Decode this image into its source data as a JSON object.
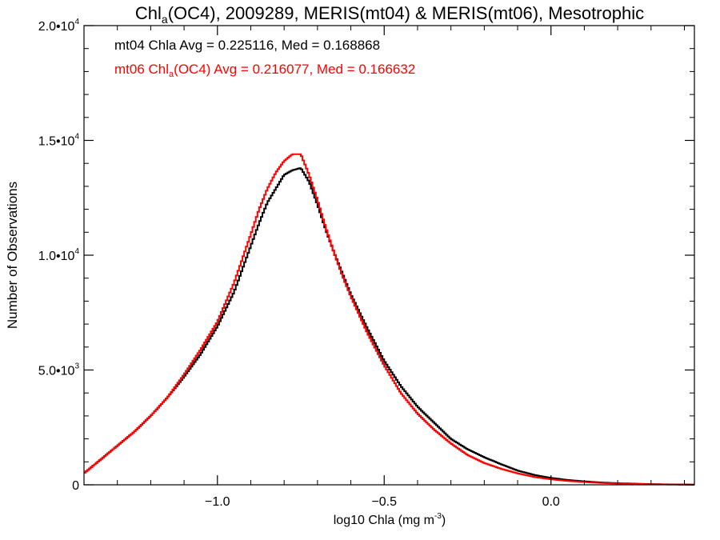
{
  "chart_data": {
    "type": "line",
    "title": {
      "prefix": "Chl",
      "sub": "a",
      "suffix": "(OC4), 2009289, MERIS(mt04) & MERIS(mt06), Mesotrophic"
    },
    "xlabel": {
      "main": "log10 Chla (mg m",
      "sup": "-3",
      "close": ")"
    },
    "ylabel": "Number of Observations",
    "xlim": [
      -1.4,
      0.43
    ],
    "ylim": [
      0,
      20000
    ],
    "x_ticks": [
      {
        "value": -1.0,
        "label": "−1.0"
      },
      {
        "value": -0.5,
        "label": "−0.5"
      },
      {
        "value": 0.0,
        "label": "0.0"
      }
    ],
    "y_ticks": [
      {
        "value": 0,
        "label": "0",
        "sup": ""
      },
      {
        "value": 5000,
        "label": "5.0•10",
        "sup": "3"
      },
      {
        "value": 10000,
        "label": "1.0•10",
        "sup": "4"
      },
      {
        "value": 15000,
        "label": "1.5•10",
        "sup": "4"
      },
      {
        "value": 20000,
        "label": "2.0•10",
        "sup": "4"
      }
    ],
    "annotations": [
      {
        "color": "#000000",
        "text": "mt04 Chla Avg = 0.225116, Med = 0.168868"
      },
      {
        "color": "#ff0000",
        "prefix": "mt06 Chl",
        "sub": "a",
        "suffix": "(OC4) Avg = 0.216077, Med = 0.166632"
      }
    ],
    "series": [
      {
        "color": "#000000",
        "x": [
          -1.4,
          -1.35,
          -1.3,
          -1.25,
          -1.2,
          -1.15,
          -1.1,
          -1.05,
          -1.0,
          -0.95,
          -0.9,
          -0.875,
          -0.85,
          -0.825,
          -0.8,
          -0.775,
          -0.75,
          -0.725,
          -0.7,
          -0.675,
          -0.65,
          -0.625,
          -0.6,
          -0.55,
          -0.5,
          -0.45,
          -0.4,
          -0.35,
          -0.3,
          -0.25,
          -0.2,
          -0.15,
          -0.1,
          -0.05,
          0.0,
          0.05,
          0.1,
          0.15,
          0.2,
          0.25,
          0.3,
          0.35,
          0.4,
          0.43
        ],
        "y": [
          500,
          1100,
          1700,
          2300,
          3000,
          3800,
          4700,
          5700,
          6900,
          8400,
          10400,
          11400,
          12300,
          12900,
          13500,
          13700,
          13800,
          13200,
          12200,
          11100,
          10100,
          9200,
          8300,
          6800,
          5400,
          4300,
          3400,
          2700,
          2000,
          1550,
          1200,
          900,
          620,
          430,
          300,
          210,
          150,
          100,
          70,
          50,
          30,
          20,
          12,
          8
        ]
      },
      {
        "color": "#ff0000",
        "x": [
          -1.4,
          -1.35,
          -1.3,
          -1.25,
          -1.2,
          -1.15,
          -1.1,
          -1.05,
          -1.0,
          -0.95,
          -0.9,
          -0.875,
          -0.85,
          -0.825,
          -0.8,
          -0.775,
          -0.75,
          -0.725,
          -0.7,
          -0.675,
          -0.65,
          -0.625,
          -0.6,
          -0.55,
          -0.5,
          -0.45,
          -0.4,
          -0.35,
          -0.3,
          -0.25,
          -0.2,
          -0.15,
          -0.1,
          -0.05,
          0.0,
          0.05,
          0.1,
          0.15,
          0.2,
          0.25,
          0.3,
          0.35,
          0.4,
          0.43
        ],
        "y": [
          500,
          1100,
          1700,
          2300,
          3000,
          3800,
          4800,
          5900,
          7100,
          8800,
          10900,
          12000,
          12900,
          13600,
          14100,
          14400,
          14400,
          13500,
          12400,
          11200,
          10100,
          9100,
          8200,
          6600,
          5200,
          4000,
          3100,
          2400,
          1800,
          1300,
          950,
          700,
          500,
          340,
          240,
          170,
          120,
          80,
          55,
          38,
          24,
          15,
          9,
          6
        ]
      }
    ]
  }
}
